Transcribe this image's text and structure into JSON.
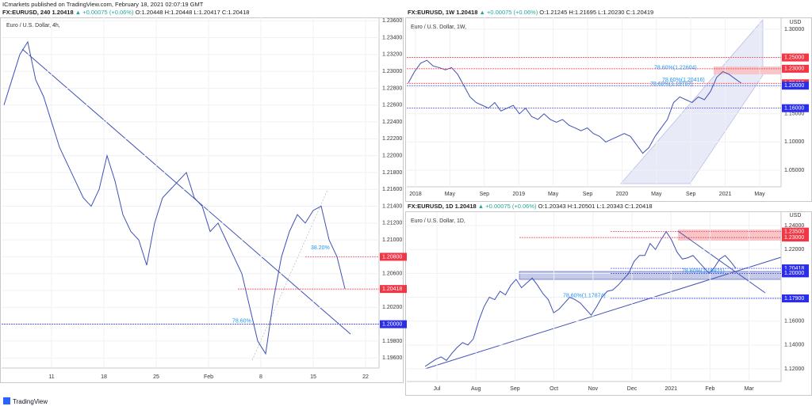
{
  "publisher": "ICmarkets published on TradingView.com, February 18, 2021 02:07:19 GMT",
  "footer": "TradingView",
  "chart_data": [
    {
      "type": "line",
      "header": {
        "symbol": "FX:EURUSD, 240 1.20418",
        "change": "▲ +0.00075 (+0.06%)",
        "ohlc": "O:1.20448 H:1.20448 L:1.20417 C:1.20418"
      },
      "subtitle": "Euro / U.S. Dollar, 4h,",
      "color": "#3f51b5",
      "grid": true,
      "ylim": [
        1.1948,
        1.2364
      ],
      "yticks": [
        {
          "value": 1.196,
          "label": "1.19600"
        },
        {
          "value": 1.198,
          "label": "1.19800"
        },
        {
          "value": 1.2,
          "label": "1.20000"
        },
        {
          "value": 1.202,
          "label": "1.20200"
        },
        {
          "value": 1.204,
          "label": "1.20400"
        },
        {
          "value": 1.206,
          "label": "1.20600"
        },
        {
          "value": 1.208,
          "label": "1.20800"
        },
        {
          "value": 1.21,
          "label": "1.21000"
        },
        {
          "value": 1.212,
          "label": "1.21200"
        },
        {
          "value": 1.214,
          "label": "1.21400"
        },
        {
          "value": 1.216,
          "label": "1.21600"
        },
        {
          "value": 1.218,
          "label": "1.21800"
        },
        {
          "value": 1.22,
          "label": "1.22000"
        },
        {
          "value": 1.222,
          "label": "1.22200"
        },
        {
          "value": 1.224,
          "label": "1.22400"
        },
        {
          "value": 1.226,
          "label": "1.22600"
        },
        {
          "value": 1.228,
          "label": "1.22800"
        },
        {
          "value": 1.23,
          "label": "1.23000"
        },
        {
          "value": 1.232,
          "label": "1.23200"
        },
        {
          "value": 1.234,
          "label": "1.23400"
        },
        {
          "value": 1.236,
          "label": "1.23600"
        }
      ],
      "xtick_labels": [
        "11",
        "18",
        "25",
        "Feb",
        "8",
        "15",
        "22"
      ],
      "values": [
        1.226,
        1.229,
        1.232,
        1.2335,
        1.229,
        1.227,
        1.224,
        1.221,
        1.219,
        1.217,
        1.215,
        1.214,
        1.216,
        1.22,
        1.217,
        1.213,
        1.211,
        1.21,
        1.207,
        1.212,
        1.215,
        1.216,
        1.217,
        1.218,
        1.215,
        1.214,
        1.211,
        1.212,
        1.21,
        1.208,
        1.206,
        1.202,
        1.198,
        1.1965,
        1.203,
        1.208,
        1.211,
        1.213,
        1.212,
        1.2135,
        1.214,
        1.21,
        1.208,
        1.2042
      ],
      "hlines": [
        {
          "value": 1.208,
          "label": "1.20800",
          "color": "#f23645"
        },
        {
          "value": 1.20418,
          "label": "1.20418",
          "color": "#f23645"
        },
        {
          "value": 1.2,
          "label": "1.20000",
          "color": "#2a2ee8"
        }
      ],
      "annotations": [
        {
          "text": "38.20%",
          "y": 1.2087
        },
        {
          "text": "78.60%",
          "y": 1.2
        },
        {
          "text": "",
          "y": null
        }
      ]
    },
    {
      "type": "line",
      "header": {
        "symbol": "FX:EURUSD, 1W 1.20418",
        "change": "▲ +0.00075 (+0.06%)",
        "ohlc": "O:1.21245 H:1.21695 L:1.20230 C:1.20419"
      },
      "subtitle": "Euro / U.S. Dollar, 1W,",
      "color": "#3f51b5",
      "grid": true,
      "currency": "USD",
      "ylim": [
        1.0205,
        1.3211
      ],
      "yticks": [
        {
          "value": 1.05,
          "label": "1.05000"
        },
        {
          "value": 1.1,
          "label": "1.10000"
        },
        {
          "value": 1.15,
          "label": "1.15000"
        },
        {
          "value": 1.2,
          "label": "1.20000"
        },
        {
          "value": 1.25,
          "label": "1.25000"
        },
        {
          "value": 1.3,
          "label": "1.30000"
        }
      ],
      "xtick_labels": [
        "2018",
        "May",
        "Sep",
        "2019",
        "May",
        "Sep",
        "2020",
        "May",
        "Sep",
        "2021",
        "May"
      ],
      "values": [
        1.205,
        1.225,
        1.24,
        1.245,
        1.235,
        1.232,
        1.228,
        1.232,
        1.22,
        1.2,
        1.18,
        1.17,
        1.165,
        1.16,
        1.17,
        1.155,
        1.16,
        1.165,
        1.15,
        1.16,
        1.145,
        1.14,
        1.15,
        1.14,
        1.135,
        1.14,
        1.13,
        1.125,
        1.12,
        1.125,
        1.115,
        1.11,
        1.1,
        1.105,
        1.11,
        1.115,
        1.11,
        1.095,
        1.08,
        1.09,
        1.11,
        1.125,
        1.14,
        1.17,
        1.18,
        1.175,
        1.17,
        1.18,
        1.175,
        1.19,
        1.215,
        1.225,
        1.22,
        1.212,
        1.2042
      ],
      "hlines": [
        {
          "value": 1.25,
          "label": "1.25000",
          "color": "#f23645"
        },
        {
          "value": 1.23,
          "label": "1.23000",
          "color": "#f23645"
        },
        {
          "value": 1.20419,
          "label": "1.20419",
          "color": "#f23645"
        },
        {
          "value": 1.2,
          "label": "1.20000",
          "color": "#2a2ee8"
        },
        {
          "value": 1.16,
          "label": "1.16000",
          "color": "#2a2ee8"
        }
      ],
      "annotations": [
        {
          "text": "78.60%(1.22604)",
          "y": 1.22604
        },
        {
          "text": "78.60%(1.20416)",
          "y": 1.20416
        },
        {
          "text": "78.60%(1.19707)",
          "y": 1.19707
        }
      ]
    },
    {
      "type": "line",
      "header": {
        "symbol": "FX:EURUSD, 1D 1.20418",
        "change": "▲ +0.00075 (+0.06%)",
        "ohlc": "O:1.20343 H:1.20501 L:1.20343 C:1.20418"
      },
      "subtitle": "Euro / U.S. Dollar, 1D,",
      "color": "#3f51b5",
      "grid": true,
      "currency": "USD",
      "ylim": [
        1.1094,
        1.2513
      ],
      "yticks": [
        {
          "value": 1.12,
          "label": "1.12000"
        },
        {
          "value": 1.14,
          "label": "1.14000"
        },
        {
          "value": 1.16,
          "label": "1.16000"
        },
        {
          "value": 1.18,
          "label": "1.18000"
        },
        {
          "value": 1.2,
          "label": "1.20000"
        },
        {
          "value": 1.22,
          "label": "1.22000"
        },
        {
          "value": 1.24,
          "label": "1.24000"
        }
      ],
      "xtick_labels": [
        "Jul",
        "Aug",
        "Sep",
        "Oct",
        "Nov",
        "Dec",
        "2021",
        "Feb",
        "Mar"
      ],
      "values": [
        1.122,
        1.125,
        1.128,
        1.13,
        1.127,
        1.133,
        1.138,
        1.142,
        1.14,
        1.145,
        1.16,
        1.172,
        1.18,
        1.178,
        1.185,
        1.182,
        1.19,
        1.195,
        1.188,
        1.192,
        1.196,
        1.19,
        1.183,
        1.178,
        1.167,
        1.17,
        1.175,
        1.18,
        1.178,
        1.175,
        1.17,
        1.165,
        1.172,
        1.18,
        1.185,
        1.186,
        1.19,
        1.195,
        1.2,
        1.21,
        1.215,
        1.215,
        1.225,
        1.22,
        1.228,
        1.235,
        1.228,
        1.218,
        1.212,
        1.213,
        1.215,
        1.21,
        1.205,
        1.2,
        1.205,
        1.212,
        1.215,
        1.21,
        1.2042
      ],
      "hlines": [
        {
          "value": 1.235,
          "label": "1.23500",
          "color": "#f23645"
        },
        {
          "value": 1.23,
          "label": "1.23000",
          "color": "#f23645"
        },
        {
          "value": 1.20418,
          "label": "1.20418",
          "color": "#2a2ee8"
        },
        {
          "value": 1.2,
          "label": "1.20000",
          "color": "#2a2ee8"
        },
        {
          "value": 1.179,
          "label": "1.17900",
          "color": "#2a2ee8"
        }
      ],
      "annotations": [
        {
          "text": "78.60%(1.19921)",
          "y": 1.19921
        },
        {
          "text": "78.60%(1.17874)",
          "y": 1.17874
        },
        {
          "text": "",
          "y": null
        }
      ]
    }
  ]
}
